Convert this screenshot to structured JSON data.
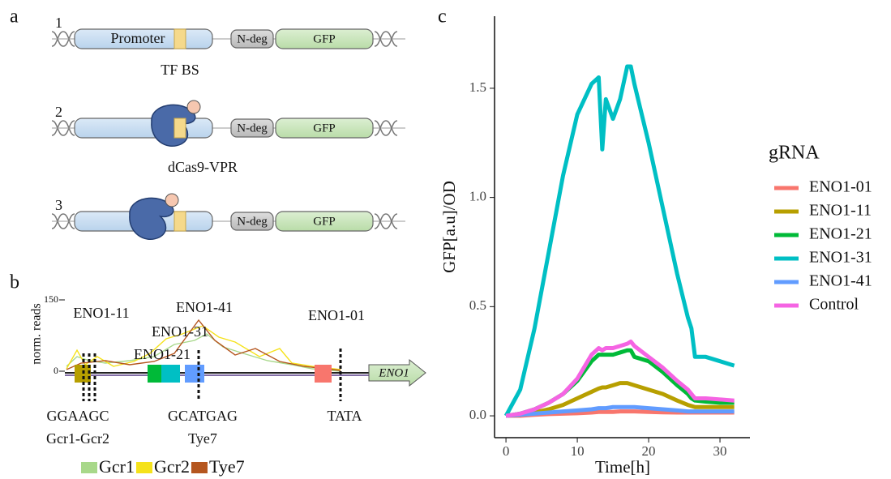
{
  "panel_a": {
    "label": "a",
    "constructs": [
      {
        "number": "1",
        "labels": [
          "Promoter",
          "N-deg",
          "GFP"
        ],
        "caption": "TF BS"
      },
      {
        "number": "2",
        "labels": [
          "N-deg",
          "GFP"
        ],
        "caption": "dCas9-VPR"
      },
      {
        "number": "3",
        "labels": [
          "N-deg",
          "GFP"
        ]
      }
    ]
  },
  "panel_b": {
    "label": "b",
    "y_label": "norm. reads",
    "y_ticks": [
      "150",
      "0"
    ],
    "grnas": [
      "ENO1-11",
      "ENO1-41",
      "ENO1-31",
      "ENO1-21",
      "ENO1-01"
    ],
    "gene": "ENO1",
    "motifs": [
      {
        "sequence": "GGAAGC",
        "factor": "Gcr1-Gcr2"
      },
      {
        "sequence": "GCATGAG",
        "factor": "Tye7"
      },
      {
        "sequence": "TATA"
      }
    ],
    "legend": [
      {
        "name": "Gcr1",
        "color": "#a8d88a"
      },
      {
        "name": "Gcr2",
        "color": "#f5e21b"
      },
      {
        "name": "Tye7",
        "color": "#b5561f"
      }
    ]
  },
  "chart_data": {
    "type": "line",
    "panel_label": "c",
    "x_label": "Time[h]",
    "y_label": "GFP[a.u]/OD",
    "legend_title": "gRNA",
    "x": [
      0,
      2,
      4,
      6,
      8,
      10,
      12,
      13,
      13.5,
      14,
      15,
      16,
      17,
      17.5,
      18,
      20,
      22,
      24,
      25.5,
      26,
      26.5,
      28,
      30,
      32
    ],
    "series": [
      {
        "name": "ENO1-01",
        "color": "#f8766d",
        "values": [
          0,
          0,
          0.005,
          0.008,
          0.01,
          0.012,
          0.015,
          0.018,
          0.018,
          0.018,
          0.018,
          0.02,
          0.02,
          0.02,
          0.02,
          0.018,
          0.016,
          0.015,
          0.015,
          0.015,
          0.015,
          0.015,
          0.015,
          0.015
        ]
      },
      {
        "name": "ENO1-11",
        "color": "#b79f00",
        "values": [
          0,
          0.005,
          0.015,
          0.03,
          0.05,
          0.08,
          0.11,
          0.125,
          0.13,
          0.13,
          0.14,
          0.15,
          0.15,
          0.145,
          0.14,
          0.12,
          0.1,
          0.07,
          0.05,
          0.045,
          0.04,
          0.04,
          0.04,
          0.04
        ]
      },
      {
        "name": "ENO1-21",
        "color": "#00ba38",
        "values": [
          0,
          0.01,
          0.03,
          0.06,
          0.1,
          0.16,
          0.25,
          0.28,
          0.28,
          0.28,
          0.28,
          0.29,
          0.3,
          0.3,
          0.27,
          0.25,
          0.2,
          0.14,
          0.1,
          0.08,
          0.07,
          0.065,
          0.06,
          0.06
        ]
      },
      {
        "name": "ENO1-31",
        "color": "#00bfc4",
        "values": [
          0,
          0.12,
          0.4,
          0.75,
          1.1,
          1.38,
          1.52,
          1.55,
          1.22,
          1.45,
          1.36,
          1.45,
          1.6,
          1.6,
          1.52,
          1.25,
          0.95,
          0.65,
          0.45,
          0.4,
          0.27,
          0.27,
          0.25,
          0.23
        ]
      },
      {
        "name": "ENO1-41",
        "color": "#619cff",
        "values": [
          0,
          0.005,
          0.01,
          0.015,
          0.02,
          0.025,
          0.03,
          0.035,
          0.035,
          0.035,
          0.04,
          0.04,
          0.04,
          0.04,
          0.04,
          0.035,
          0.03,
          0.025,
          0.02,
          0.02,
          0.02,
          0.02,
          0.02,
          0.02
        ]
      },
      {
        "name": "Control",
        "color": "#f564e3",
        "values": [
          0,
          0.01,
          0.03,
          0.06,
          0.1,
          0.17,
          0.28,
          0.31,
          0.3,
          0.31,
          0.31,
          0.32,
          0.33,
          0.34,
          0.32,
          0.27,
          0.22,
          0.16,
          0.12,
          0.1,
          0.08,
          0.08,
          0.075,
          0.07
        ]
      }
    ],
    "xlim": [
      -1.6,
      34.2
    ],
    "xticks": [
      0,
      10,
      20,
      30
    ],
    "ylim": [
      -0.1,
      1.83
    ],
    "yticks": [
      {
        "value": 0,
        "label": "0.0"
      },
      0.5,
      {
        "value": 1,
        "label": "1.0"
      },
      1.5
    ]
  }
}
